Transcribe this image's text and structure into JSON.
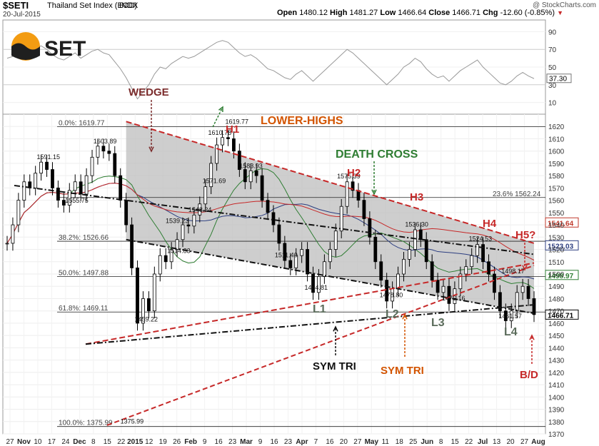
{
  "header": {
    "symbol": "$SETI",
    "name": "Thailand Set Index (EOD)",
    "type": "INDX",
    "date": "20-Jul-2015",
    "watermark": "@ StockCharts.com",
    "open_label": "Open",
    "open": "1480.12",
    "high_label": "High",
    "high": "1481.27",
    "low_label": "Low",
    "low": "1466.64",
    "close_label": "Close",
    "close": "1466.71",
    "chg_label": "Chg",
    "chg": "-12.60 (-0.85%)"
  },
  "logo": {
    "text": "SET",
    "colors": {
      "orange": "#f39c12",
      "dark": "#1f1f1f"
    }
  },
  "chart_data": {
    "type": "line",
    "price_axis": {
      "min": 1370,
      "max": 1630,
      "ticks": [
        1370,
        1380,
        1390,
        1400,
        1410,
        1420,
        1430,
        1440,
        1450,
        1460,
        1470,
        1480,
        1490,
        1500,
        1510,
        1520,
        1530,
        1540,
        1550,
        1560,
        1570,
        1580,
        1590,
        1600,
        1610,
        1620
      ]
    },
    "rsi_axis": {
      "ticks": [
        "90",
        "70",
        "50",
        "30",
        "10"
      ],
      "current": "37.30"
    },
    "x_ticks": [
      "27",
      "Nov",
      "10",
      "17",
      "24",
      "Dec",
      "8",
      "15",
      "22",
      "2015",
      "12",
      "19",
      "26",
      "Feb",
      "9",
      "16",
      "23",
      "Mar",
      "9",
      "16",
      "23",
      "Apr",
      "7",
      "16",
      "20",
      "27",
      "May",
      "11",
      "18",
      "25",
      "Jun",
      "8",
      "15",
      "22",
      "Jul",
      "13",
      "20",
      "27",
      "Aug"
    ],
    "close_series": [
      1525,
      1540,
      1560,
      1575,
      1570,
      1582,
      1591,
      1585,
      1570,
      1560,
      1556,
      1568,
      1575,
      1565,
      1580,
      1595,
      1604,
      1600,
      1598,
      1580,
      1560,
      1540,
      1505,
      1460,
      1480,
      1470,
      1500,
      1515,
      1510,
      1520,
      1528,
      1540,
      1539,
      1548,
      1557,
      1571,
      1590,
      1605,
      1611,
      1610,
      1600,
      1585,
      1575,
      1584,
      1580,
      1560,
      1550,
      1540,
      1525,
      1511,
      1505,
      1515,
      1520,
      1500,
      1485,
      1498,
      1510,
      1520,
      1535,
      1555,
      1575,
      1568,
      1560,
      1545,
      1530,
      1510,
      1495,
      1478,
      1488,
      1500,
      1512,
      1520,
      1536,
      1528,
      1510,
      1495,
      1485,
      1490,
      1476,
      1488,
      1500,
      1506,
      1515,
      1524,
      1510,
      1500,
      1485,
      1470,
      1462,
      1470,
      1485,
      1490,
      1480,
      1467
    ],
    "rsi_series": [
      60,
      62,
      66,
      70,
      68,
      72,
      74,
      70,
      64,
      60,
      58,
      62,
      66,
      60,
      64,
      68,
      70,
      66,
      64,
      56,
      48,
      38,
      26,
      14,
      22,
      30,
      42,
      50,
      48,
      54,
      58,
      62,
      60,
      62,
      66,
      70,
      74,
      78,
      80,
      78,
      72,
      66,
      62,
      64,
      60,
      54,
      48,
      46,
      42,
      38,
      36,
      42,
      46,
      40,
      34,
      40,
      46,
      52,
      58,
      64,
      70,
      66,
      60,
      54,
      48,
      42,
      36,
      30,
      36,
      42,
      50,
      54,
      60,
      56,
      48,
      42,
      38,
      40,
      34,
      40,
      46,
      50,
      54,
      58,
      50,
      44,
      38,
      32,
      30,
      34,
      40,
      44,
      40,
      37
    ],
    "fib_levels": [
      {
        "label": "0.0%: 1619.77",
        "value": 1619.77
      },
      {
        "label": "23.6% 1562.24",
        "value": 1562.24
      },
      {
        "label": "38.2%: 1526.66",
        "value": 1526.66
      },
      {
        "label": "50.0%: 1497.88",
        "value": 1497.88
      },
      {
        "label": "61.8%: 1469.11",
        "value": 1469.11
      },
      {
        "label": "100.0%: 1375.99",
        "value": 1375.99
      }
    ],
    "price_labels": [
      "1591.15",
      "1555.75",
      "1603.89",
      "1539.23",
      "1548.24",
      "1610.78",
      "1619.77",
      "1583.93",
      "1571.69",
      "1514.83",
      "1459.22",
      "1375.99",
      "1511.40",
      "1484.81",
      "1575.39",
      "1536.30",
      "1478.80",
      "1476.16",
      "1524.53",
      "1498.17",
      "1461.57"
    ],
    "right_tags": [
      {
        "text": "1541.64",
        "value": 1541.64,
        "color": "#c0392b"
      },
      {
        "text": "1523.03",
        "value": 1523.03,
        "color": "#2c3e80"
      },
      {
        "text": "1498.97",
        "value": 1498.97,
        "color": "#2e7d32"
      },
      {
        "text": "1466.71",
        "value": 1466.71,
        "color": "#000000"
      }
    ],
    "annotations": {
      "wedge": "WEDGE",
      "lower_highs": "LOWER-HIGHS",
      "death_cross": "DEATH CROSS",
      "h1": "H1",
      "h2": "H2",
      "h3": "H3",
      "h4": "H4",
      "h5": "H5?",
      "l1": "L1",
      "l2": "L2",
      "l3": "L3",
      "l4": "L4",
      "sym_tri_1": "SYM TRI",
      "sym_tri_2": "SYM TRI",
      "bd": "B/D"
    },
    "colors": {
      "red": "#c62828",
      "green": "#2e7d32",
      "orange": "#d35400",
      "maroon": "#7b2b2b",
      "navy": "#2c3e80",
      "grey_fill": "#bdbdbd"
    }
  }
}
